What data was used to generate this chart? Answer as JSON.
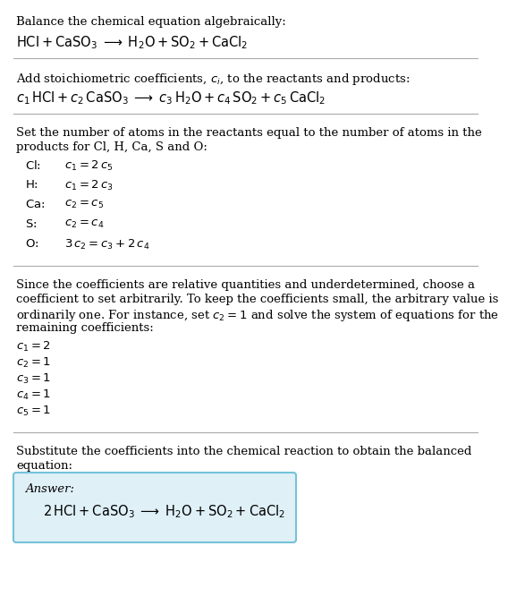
{
  "bg_color": "#ffffff",
  "text_color": "#000000",
  "answer_box_facecolor": "#dff0f7",
  "answer_box_edgecolor": "#75c2d8",
  "section1_title": "Balance the chemical equation algebraically:",
  "section1_eq": "$\\mathrm{HCl + CaSO_3 \\;\\longrightarrow\\; H_2O + SO_2 + CaCl_2}$",
  "section2_title": "Add stoichiometric coefficients, $c_i$, to the reactants and products:",
  "section2_eq": "$c_1\\,\\mathrm{HCl} + c_2\\,\\mathrm{CaSO_3} \\;\\longrightarrow\\; c_3\\,\\mathrm{H_2O} + c_4\\,\\mathrm{SO_2} + c_5\\,\\mathrm{CaCl_2}$",
  "section3_title_line1": "Set the number of atoms in the reactants equal to the number of atoms in the",
  "section3_title_line2": "products for Cl, H, Ca, S and O:",
  "atom_labels": [
    "Cl:",
    " H:",
    "Ca:",
    " S:",
    " O:"
  ],
  "atom_eqs": [
    "$c_1 = 2\\,c_5$",
    "$c_1 = 2\\,c_3$",
    "$c_2 = c_5$",
    "$c_2 = c_4$",
    "$3\\,c_2 = c_3 + 2\\,c_4$"
  ],
  "section4_line1": "Since the coefficients are relative quantities and underdetermined, choose a",
  "section4_line2": "coefficient to set arbitrarily. To keep the coefficients small, the arbitrary value is",
  "section4_line3": "ordinarily one. For instance, set $c_2 = 1$ and solve the system of equations for the",
  "section4_line4": "remaining coefficients:",
  "coeff_labels": [
    "$c_1 = 2$",
    "$c_2 = 1$",
    "$c_3 = 1$",
    "$c_4 = 1$",
    "$c_5 = 1$"
  ],
  "section5_line1": "Substitute the coefficients into the chemical reaction to obtain the balanced",
  "section5_line2": "equation:",
  "answer_label": "Answer:",
  "answer_eq": "$2\\,\\mathrm{HCl + CaSO_3 \\;\\longrightarrow\\; H_2O + SO_2 + CaCl_2}$",
  "line_color": "#aaaaaa",
  "fs_body": 9.5,
  "fs_eq": 10.5
}
